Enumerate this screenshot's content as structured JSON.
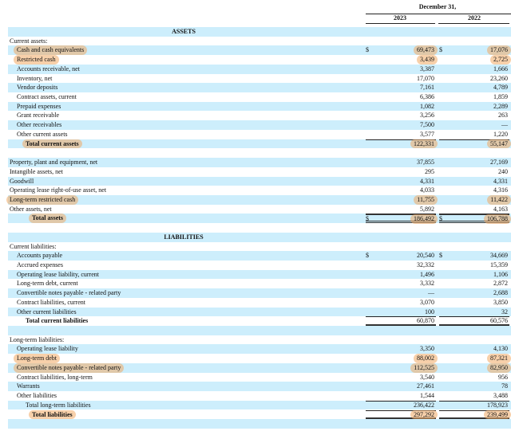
{
  "header": {
    "period": "December 31,",
    "col_2023": "2023",
    "col_2022": "2022"
  },
  "colors": {
    "stripe": "#cdeefc",
    "highlight": "#f0aa64"
  },
  "rows": [
    {
      "type": "section",
      "label": "ASSETS",
      "blue": true
    },
    {
      "label": "Current assets:",
      "indent": 0
    },
    {
      "label": "Cash and cash equivalents",
      "v2023": "69,473",
      "v2022": "17,076",
      "dollar": true,
      "indent": 1,
      "hl": true,
      "blue": true
    },
    {
      "label": "Restricted cash",
      "v2023": "3,439",
      "v2022": "2,725",
      "indent": 1,
      "hl": true
    },
    {
      "label": "Accounts receivable, net",
      "v2023": "3,387",
      "v2022": "1,666",
      "indent": 1,
      "blue": true
    },
    {
      "label": "Inventory, net",
      "v2023": "17,070",
      "v2022": "23,260",
      "indent": 1
    },
    {
      "label": "Vendor deposits",
      "v2023": "7,161",
      "v2022": "4,789",
      "indent": 1,
      "blue": true
    },
    {
      "label": "Contract assets, current",
      "v2023": "6,386",
      "v2022": "1,859",
      "indent": 1
    },
    {
      "label": "Prepaid expenses",
      "v2023": "1,082",
      "v2022": "2,289",
      "indent": 1,
      "blue": true
    },
    {
      "label": "Grant receivable",
      "v2023": "3,256",
      "v2022": "263",
      "indent": 1
    },
    {
      "label": "Other receivables",
      "v2023": "7,500",
      "v2022": "—",
      "indent": 1,
      "blue": true
    },
    {
      "label": "Other current assets",
      "v2023": "3,577",
      "v2022": "1,220",
      "indent": 1
    },
    {
      "label": "Total current assets",
      "v2023": "122,331",
      "v2022": "55,147",
      "indent": 2,
      "bold": true,
      "hl": true,
      "blue": true,
      "top": "thin"
    },
    {
      "label": ""
    },
    {
      "label": "Property, plant and equipment, net",
      "v2023": "37,855",
      "v2022": "27,169",
      "indent": 0,
      "blue": true
    },
    {
      "label": "Intangible assets, net",
      "v2023": "295",
      "v2022": "240",
      "indent": 0
    },
    {
      "label": "Goodwill",
      "v2023": "4,331",
      "v2022": "4,331",
      "indent": 0,
      "blue": true
    },
    {
      "label": "Operating lease right-of-use asset, net",
      "v2023": "4,033",
      "v2022": "4,316",
      "indent": 0
    },
    {
      "label": "Long-term restricted cash",
      "v2023": "11,755",
      "v2022": "11,422",
      "indent": 0,
      "hl": true,
      "blue": true
    },
    {
      "label": "Other assets, net",
      "v2023": "5,892",
      "v2022": "4,163",
      "indent": 0
    },
    {
      "label": "Total assets",
      "v2023": "186,492",
      "v2022": "106,788",
      "dollar": true,
      "indent": 3,
      "bold": true,
      "hl": true,
      "blue": true,
      "top": "thick",
      "bottom": "double"
    },
    {
      "label": ""
    },
    {
      "type": "section",
      "label": "LIABILITIES",
      "blue": true
    },
    {
      "label": "Current liabilities:",
      "indent": 0
    },
    {
      "label": "Accounts payable",
      "v2023": "20,540",
      "v2022": "34,669",
      "dollar": true,
      "indent": 1,
      "blue": true
    },
    {
      "label": "Accrued expenses",
      "v2023": "32,332",
      "v2022": "15,359",
      "indent": 1
    },
    {
      "label": "Operating lease liability, current",
      "v2023": "1,496",
      "v2022": "1,106",
      "indent": 1,
      "blue": true
    },
    {
      "label": "Long-term debt, current",
      "v2023": "3,332",
      "v2022": "2,872",
      "indent": 1
    },
    {
      "label": "Convertible notes payable - related party",
      "v2023": "—",
      "v2022": "2,688",
      "indent": 1,
      "blue": true
    },
    {
      "label": "Contract liabilities, current",
      "v2023": "3,070",
      "v2022": "3,850",
      "indent": 1
    },
    {
      "label": "Other current liabilities",
      "v2023": "100",
      "v2022": "32",
      "indent": 1,
      "blue": true
    },
    {
      "label": "Total current liabilities",
      "v2023": "60,870",
      "v2022": "60,576",
      "indent": 2,
      "bold": true,
      "top": "thin",
      "bottom": "thick"
    },
    {
      "label": "",
      "blue": true
    },
    {
      "label": "Long-term liabilities:",
      "indent": 0
    },
    {
      "label": "Operating lease liability",
      "v2023": "3,350",
      "v2022": "4,130",
      "indent": 1,
      "blue": true
    },
    {
      "label": "Long-term debt",
      "v2023": "88,002",
      "v2022": "87,321",
      "indent": 1,
      "hl": true
    },
    {
      "label": "Convertible notes payable - related party",
      "v2023": "112,525",
      "v2022": "82,950",
      "indent": 1,
      "hl": true,
      "blue": true
    },
    {
      "label": "Contract liabilities, long-term",
      "v2023": "3,540",
      "v2022": "956",
      "indent": 1
    },
    {
      "label": "Warrants",
      "v2023": "27,461",
      "v2022": "78",
      "indent": 1,
      "blue": true
    },
    {
      "label": "Other liabilities",
      "v2023": "1,544",
      "v2022": "3,488",
      "indent": 1
    },
    {
      "label": "Total long-term liabilities",
      "v2023": "236,422",
      "v2022": "178,923",
      "indent": 2,
      "blue": true,
      "top": "thin"
    },
    {
      "label": "Total liabilities",
      "v2023": "297,292",
      "v2022": "239,499",
      "indent": 3,
      "bold": true,
      "hl": true,
      "top": "thin",
      "bottom": "thick"
    },
    {
      "label": "",
      "blue": true
    }
  ],
  "currency_symbol": "$"
}
